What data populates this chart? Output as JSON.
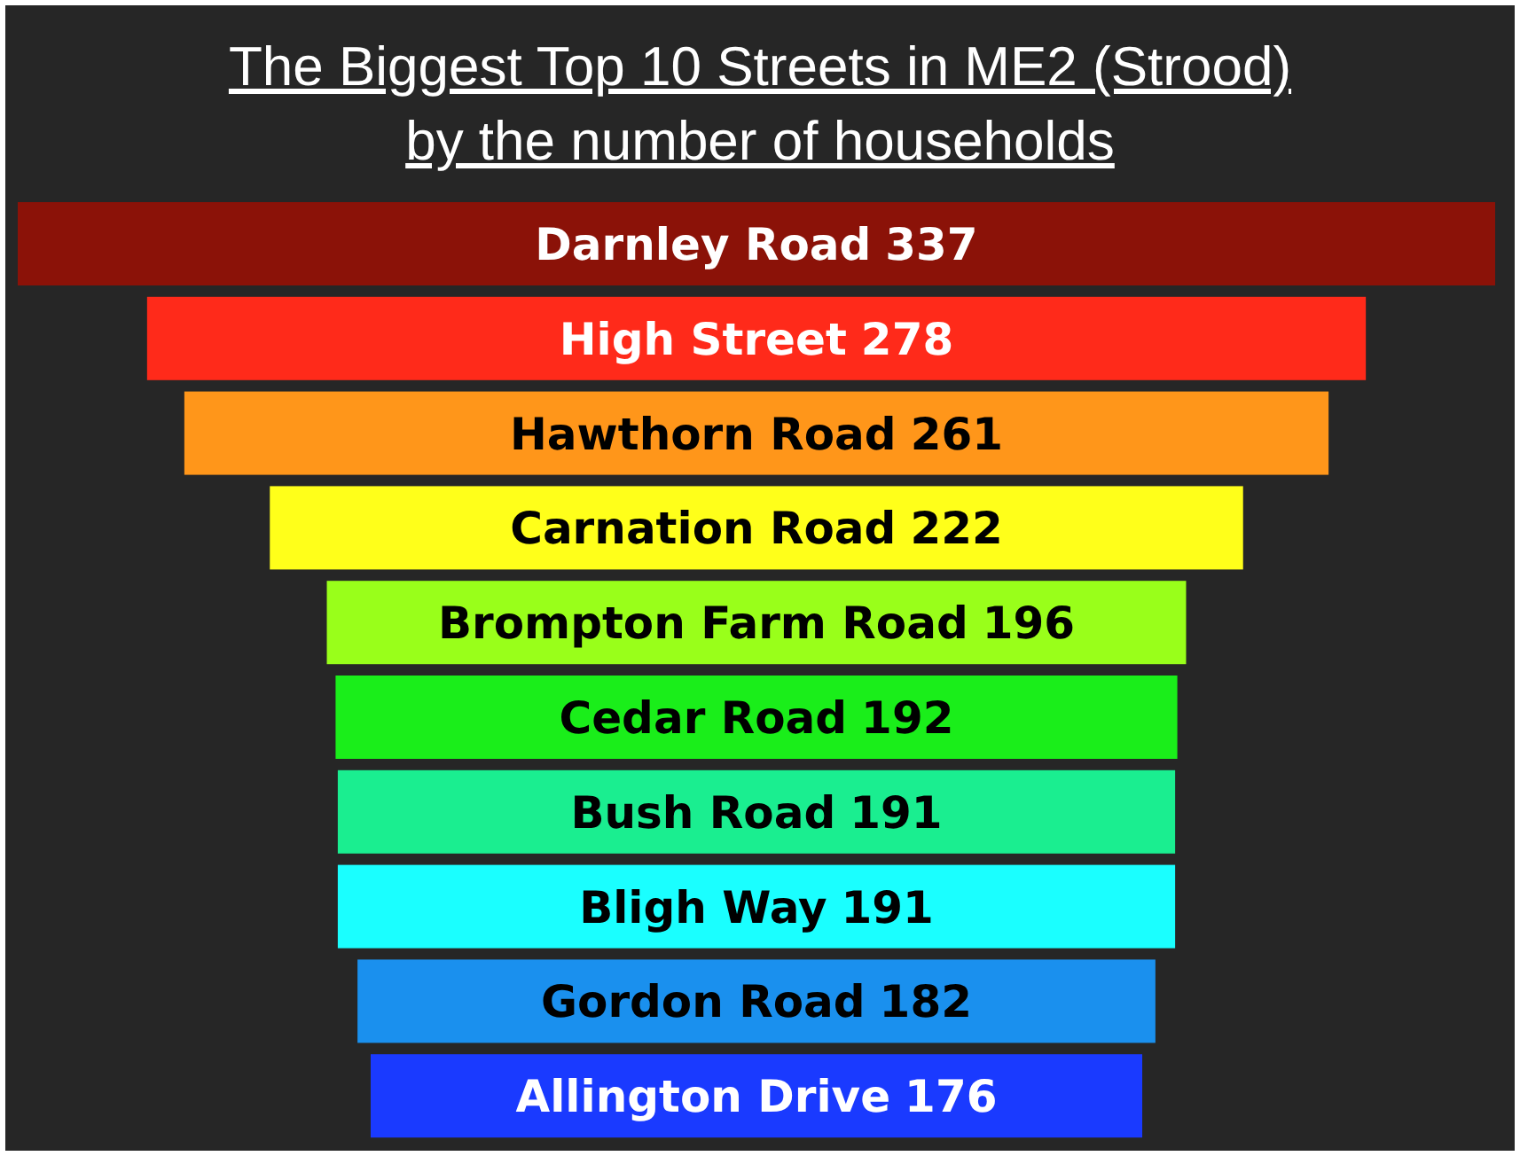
{
  "chart_data": {
    "type": "other",
    "title": "The Biggest Top 10 Streets in ME2 (Strood)",
    "subtitle": "by the number of households",
    "categories": [
      "Darnley Road",
      "High Street",
      "Hawthorn Road",
      "Carnation Road",
      "Brompton Farm Road",
      "Cedar Road",
      "Bush Road",
      "Bligh Way",
      "Gordon Road",
      "Allington Drive"
    ],
    "values": [
      337,
      278,
      261,
      222,
      196,
      192,
      191,
      191,
      182,
      176
    ],
    "colors": [
      "#8b1208",
      "#ff2a1a",
      "#ff961a",
      "#ffff1a",
      "#99ff1a",
      "#1aee1a",
      "#1aee90",
      "#1affff",
      "#1a90ee",
      "#1a3aff"
    ],
    "data_labels": true
  }
}
